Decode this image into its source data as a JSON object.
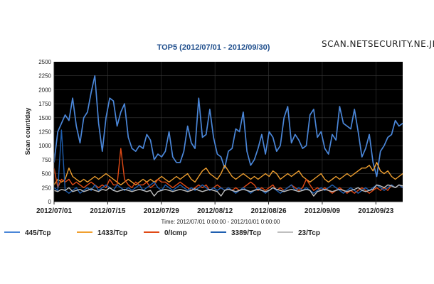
{
  "watermark": "SCAN.NETSECURITY.NE.JP",
  "chart_data": {
    "type": "line",
    "title": "TOP5 (2012/07/01 - 2012/09/30)",
    "ylabel": "Scan count/day",
    "xlabel": "Time: 2012/07/01 0:00:00 - 2012/10/01 0:00:00",
    "ylim": [
      0,
      2500
    ],
    "yticks": [
      "0",
      "250",
      "500",
      "750",
      "1000",
      "1250",
      "1500",
      "1750",
      "2000",
      "2250",
      "2500"
    ],
    "x_tick_labels": [
      "2012/07/01",
      "2012/07/15",
      "2012/07/29",
      "2012/08/12",
      "2012/08/26",
      "2012/09/09",
      "2012/09/23"
    ],
    "x_start": "2012/07/01",
    "x_end": "2012/09/30",
    "grid": true,
    "legend_position": "bottom",
    "background": "#000000",
    "series": [
      {
        "name": "445/Tcp",
        "color": "#4a86d8",
        "values": [
          700,
          1250,
          1400,
          1550,
          1450,
          1850,
          1350,
          1050,
          1500,
          1600,
          1950,
          2250,
          1400,
          900,
          1500,
          1850,
          1800,
          1350,
          1600,
          1750,
          1150,
          950,
          900,
          1000,
          950,
          1200,
          1100,
          750,
          850,
          800,
          900,
          1250,
          800,
          700,
          700,
          900,
          1350,
          1050,
          950,
          1850,
          1150,
          1200,
          1650,
          1150,
          850,
          800,
          600,
          900,
          950,
          1300,
          1250,
          1600,
          900,
          650,
          750,
          950,
          1200,
          850,
          1250,
          1150,
          900,
          1000,
          1500,
          1700,
          1050,
          1200,
          1100,
          950,
          1000,
          1550,
          1650,
          1150,
          1250,
          950,
          850,
          1200,
          1100,
          1700,
          1400,
          1350,
          1300,
          1650,
          1250,
          800,
          950,
          1200,
          700,
          450,
          900,
          1000,
          1150,
          1200,
          1450,
          1350,
          1400
        ]
      },
      {
        "name": "1433/Tcp",
        "color": "#f0a030",
        "values": [
          300,
          400,
          350,
          400,
          600,
          450,
          400,
          350,
          400,
          350,
          400,
          450,
          400,
          450,
          500,
          450,
          400,
          350,
          300,
          350,
          400,
          350,
          300,
          350,
          400,
          350,
          400,
          350,
          400,
          450,
          400,
          350,
          400,
          450,
          400,
          450,
          500,
          400,
          350,
          450,
          550,
          600,
          500,
          450,
          400,
          500,
          650,
          550,
          450,
          400,
          450,
          500,
          450,
          400,
          450,
          400,
          450,
          500,
          450,
          550,
          500,
          400,
          450,
          500,
          450,
          500,
          550,
          450,
          400,
          350,
          400,
          450,
          500,
          400,
          350,
          400,
          450,
          400,
          450,
          500,
          450,
          500,
          550,
          600,
          600,
          650,
          550,
          700,
          550,
          500,
          550,
          450,
          400,
          450,
          500
        ]
      },
      {
        "name": "0/Icmp",
        "color": "#e04a16",
        "values": [
          600,
          250,
          400,
          350,
          400,
          300,
          350,
          300,
          250,
          300,
          350,
          300,
          250,
          300,
          250,
          400,
          300,
          300,
          950,
          400,
          300,
          250,
          350,
          300,
          300,
          350,
          250,
          300,
          400,
          350,
          350,
          300,
          250,
          300,
          350,
          300,
          250,
          200,
          250,
          300,
          250,
          300,
          200,
          250,
          300,
          250,
          200,
          250,
          200,
          250,
          200,
          250,
          300,
          350,
          300,
          200,
          250,
          200,
          250,
          300,
          200,
          250,
          200,
          250,
          300,
          250,
          200,
          250,
          400,
          300,
          200,
          250,
          200,
          250,
          200,
          150,
          200,
          250,
          200,
          150,
          200,
          150,
          200,
          250,
          200,
          150,
          200,
          250,
          200,
          250,
          200,
          300,
          250,
          300,
          250
        ]
      },
      {
        "name": "3389/Tcp",
        "color": "#1f5fb0",
        "values": [
          250,
          200,
          1280,
          200,
          150,
          200,
          250,
          150,
          200,
          250,
          200,
          300,
          200,
          250,
          300,
          250,
          200,
          300,
          250,
          200,
          250,
          200,
          250,
          300,
          200,
          250,
          300,
          350,
          250,
          200,
          300,
          250,
          200,
          250,
          300,
          250,
          200,
          250,
          200,
          250,
          300,
          250,
          200,
          250,
          200,
          250,
          200,
          250,
          200,
          150,
          200,
          250,
          200,
          150,
          200,
          250,
          200,
          150,
          200,
          250,
          200,
          150,
          200,
          250,
          300,
          200,
          250,
          200,
          250,
          200,
          150,
          200,
          250,
          200,
          250,
          300,
          250,
          200,
          150,
          200,
          250,
          200,
          150,
          200,
          250,
          200,
          250,
          300,
          250,
          200,
          250,
          300,
          250,
          300,
          250
        ]
      },
      {
        "name": "23/Tcp",
        "color": "#bfbfbf",
        "values": [
          200,
          180,
          220,
          200,
          250,
          180,
          200,
          220,
          180,
          200,
          230,
          200,
          180,
          220,
          200,
          250,
          200,
          180,
          200,
          220,
          200,
          180,
          200,
          220,
          200,
          180,
          200,
          100,
          180,
          200,
          220,
          200,
          180,
          200,
          220,
          200,
          180,
          200,
          230,
          200,
          180,
          200,
          220,
          200,
          180,
          100,
          200,
          220,
          200,
          180,
          200,
          220,
          200,
          180,
          200,
          220,
          200,
          180,
          200,
          250,
          220,
          200,
          180,
          200,
          220,
          200,
          180,
          200,
          220,
          200,
          100,
          180,
          200,
          220,
          200,
          180,
          200,
          220,
          200,
          180,
          200,
          220,
          250,
          200,
          180,
          200,
          220,
          300,
          280,
          250,
          300,
          280,
          250,
          300,
          280
        ]
      }
    ]
  }
}
